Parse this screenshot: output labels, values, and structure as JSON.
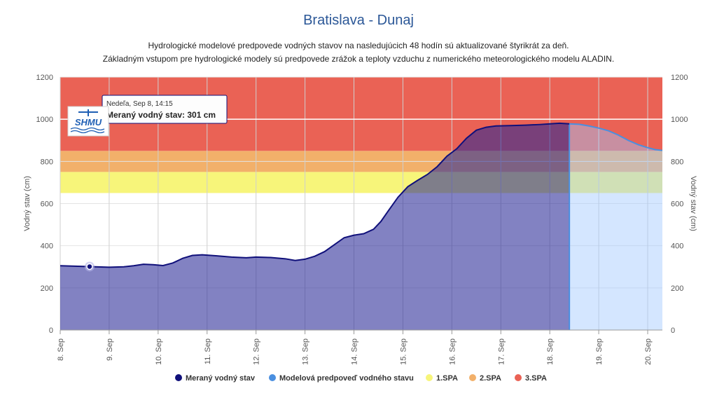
{
  "title": "Bratislava - Dunaj",
  "subtitle_line1": "Hydrologické modelové predpovede vodných stavov na nasledujúcich 48 hodín sú aktualizované štyrikrát za deň.",
  "subtitle_line2": "Základným vstupom pre hydrologické modely sú predpovede zrážok a teploty vzduchu z numerického meteorologického modelu ALADIN.",
  "tooltip": {
    "date": "Nedeľa, Sep 8, 14:15",
    "value_text": "Meraný vodný stav: 301 cm"
  },
  "logo_text": "SHMU",
  "chart_data": {
    "type": "area",
    "ylabel_left": "Vodný stav (cm)",
    "ylabel_right": "Vodný stav (cm)",
    "ylim": [
      0,
      1200
    ],
    "yticks": [
      0,
      200,
      400,
      600,
      800,
      1000,
      1200
    ],
    "x_unit": "day of September",
    "xlim": [
      8.0,
      20.3
    ],
    "xticks": [
      {
        "v": 8,
        "label": "8. Sep"
      },
      {
        "v": 9,
        "label": "9. Sep"
      },
      {
        "v": 10,
        "label": "10. Sep"
      },
      {
        "v": 11,
        "label": "11. Sep"
      },
      {
        "v": 12,
        "label": "12. Sep"
      },
      {
        "v": 13,
        "label": "13. Sep"
      },
      {
        "v": 14,
        "label": "14. Sep"
      },
      {
        "v": 15,
        "label": "15. Sep"
      },
      {
        "v": 16,
        "label": "16. Sep"
      },
      {
        "v": 17,
        "label": "17. Sep"
      },
      {
        "v": 18,
        "label": "18. Sep"
      },
      {
        "v": 19,
        "label": "19. Sep"
      },
      {
        "v": 20,
        "label": "20. Sep"
      }
    ],
    "bands": [
      {
        "name": "1.SPA",
        "from": 650,
        "to": 750,
        "color": "#f7f57a"
      },
      {
        "name": "2.SPA",
        "from": 750,
        "to": 850,
        "color": "#f2b06a"
      },
      {
        "name": "3.SPA",
        "from": 850,
        "to": 1200,
        "color": "#ea6255"
      }
    ],
    "highlight_line": 1000,
    "series": [
      {
        "name": "Meraný vodný stav",
        "color": "#10107a",
        "points": [
          [
            8.0,
            305
          ],
          [
            8.3,
            303
          ],
          [
            8.6,
            301
          ],
          [
            9.0,
            298
          ],
          [
            9.3,
            300
          ],
          [
            9.5,
            305
          ],
          [
            9.7,
            312
          ],
          [
            9.9,
            310
          ],
          [
            10.1,
            306
          ],
          [
            10.3,
            318
          ],
          [
            10.5,
            340
          ],
          [
            10.7,
            354
          ],
          [
            10.9,
            357
          ],
          [
            11.2,
            352
          ],
          [
            11.5,
            346
          ],
          [
            11.8,
            343
          ],
          [
            12.0,
            346
          ],
          [
            12.3,
            344
          ],
          [
            12.6,
            338
          ],
          [
            12.8,
            330
          ],
          [
            13.0,
            336
          ],
          [
            13.2,
            350
          ],
          [
            13.4,
            372
          ],
          [
            13.6,
            405
          ],
          [
            13.8,
            438
          ],
          [
            14.0,
            450
          ],
          [
            14.2,
            457
          ],
          [
            14.4,
            478
          ],
          [
            14.55,
            515
          ],
          [
            14.7,
            565
          ],
          [
            14.9,
            630
          ],
          [
            15.1,
            680
          ],
          [
            15.3,
            710
          ],
          [
            15.5,
            738
          ],
          [
            15.7,
            775
          ],
          [
            15.9,
            825
          ],
          [
            16.1,
            860
          ],
          [
            16.3,
            910
          ],
          [
            16.5,
            948
          ],
          [
            16.7,
            962
          ],
          [
            16.9,
            968
          ],
          [
            17.2,
            970
          ],
          [
            17.5,
            972
          ],
          [
            17.8,
            975
          ],
          [
            18.0,
            978
          ],
          [
            18.2,
            981
          ],
          [
            18.4,
            978
          ]
        ]
      },
      {
        "name": "Modelová predpoveď vodného stavu",
        "color": "#4a8fe0",
        "points": [
          [
            18.4,
            978
          ],
          [
            18.6,
            976
          ],
          [
            18.8,
            968
          ],
          [
            19.0,
            958
          ],
          [
            19.2,
            945
          ],
          [
            19.4,
            925
          ],
          [
            19.6,
            900
          ],
          [
            19.8,
            880
          ],
          [
            20.0,
            865
          ],
          [
            20.15,
            856
          ],
          [
            20.3,
            852
          ]
        ]
      }
    ],
    "legend": [
      {
        "label": "Meraný vodný stav",
        "color": "#10107a"
      },
      {
        "label": "Modelová predpoveď vodného stavu",
        "color": "#4a8fe0"
      },
      {
        "label": "1.SPA",
        "color": "#f7f57a"
      },
      {
        "label": "2.SPA",
        "color": "#f2b06a"
      },
      {
        "label": "3.SPA",
        "color": "#ea6255"
      }
    ],
    "marker": {
      "x": 8.6,
      "y": 301
    }
  }
}
